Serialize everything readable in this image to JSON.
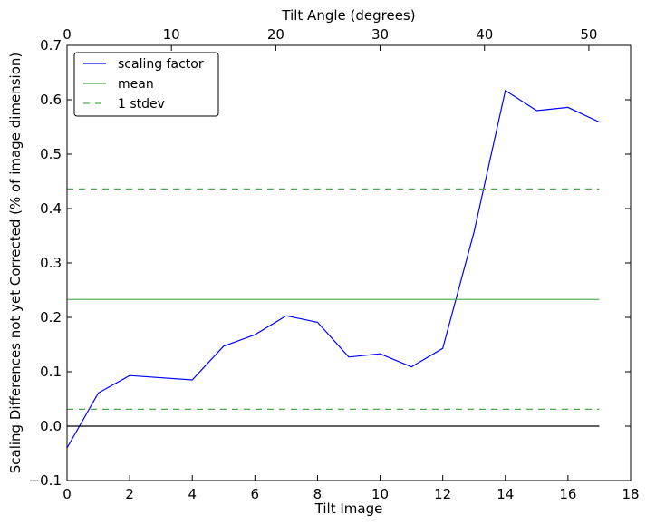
{
  "chart_data": {
    "type": "line",
    "title": "",
    "xlabel": "Tilt Image",
    "ylabel": "Scaling Differences not yet Corrected (% of image dimension)",
    "x2label": "Tilt Angle (degrees)",
    "xlim": [
      0,
      18
    ],
    "ylim": [
      -0.1,
      0.7
    ],
    "x2lim": [
      0,
      54
    ],
    "xticks": [
      0,
      2,
      4,
      6,
      8,
      10,
      12,
      14,
      16,
      18
    ],
    "yticks": [
      -0.1,
      0.0,
      0.1,
      0.2,
      0.3,
      0.4,
      0.5,
      0.6,
      0.7
    ],
    "x2ticks": [
      0,
      10,
      20,
      30,
      40,
      50
    ],
    "xtick_labels": [
      "0",
      "2",
      "4",
      "6",
      "8",
      "10",
      "12",
      "14",
      "16",
      "18"
    ],
    "ytick_labels": [
      "−0.1",
      "0.0",
      "0.1",
      "0.2",
      "0.3",
      "0.4",
      "0.5",
      "0.6",
      "0.7"
    ],
    "x2tick_labels": [
      "0",
      "10",
      "20",
      "30",
      "40",
      "50"
    ],
    "grid": false,
    "legend_position": "top-left",
    "series": [
      {
        "name": "scaling factor",
        "color": "#0000ff",
        "style": "solid",
        "x": [
          0,
          1,
          2,
          4,
          5,
          6,
          7,
          8,
          9,
          10,
          11,
          12,
          13,
          14,
          15,
          16,
          17
        ],
        "y": [
          -0.04,
          0.061,
          0.093,
          0.085,
          0.147,
          0.168,
          0.203,
          0.191,
          0.127,
          0.133,
          0.109,
          0.143,
          0.357,
          0.617,
          0.58,
          0.586,
          0.559
        ]
      },
      {
        "name": "mean",
        "color": "#4aaa4a",
        "style": "solid",
        "x": [
          0,
          17
        ],
        "y": [
          0.233,
          0.233
        ]
      },
      {
        "name": "1 stdev",
        "color": "#4aaa4a",
        "style": "dashed",
        "x": [
          0,
          17
        ],
        "y": [
          0.436,
          0.436
        ]
      },
      {
        "color": "#4aaa4a",
        "style": "dashed",
        "x": [
          0,
          17
        ],
        "y": [
          0.031,
          0.031
        ]
      },
      {
        "color": "#000000",
        "style": "solid",
        "x": [
          0,
          17
        ],
        "y": [
          0.0,
          0.0
        ]
      }
    ]
  }
}
